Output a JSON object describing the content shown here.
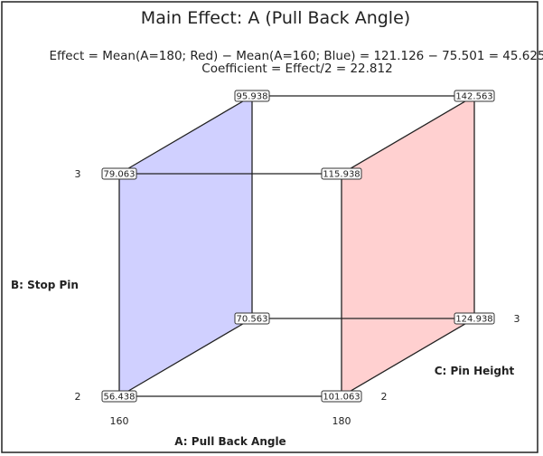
{
  "title": "Main Effect: A (Pull Back Angle)",
  "effect_line": "Effect = Mean(A=180; Red) − Mean(A=160; Blue) = 121.126 − 75.501 = 45.625",
  "coefficient_line": "Coefficient = Effect/2 = 22.812",
  "axes": {
    "a_label": "A: Pull Back Angle",
    "b_label": "B: Stop Pin",
    "c_label": "C: Pin Height",
    "a_low": "160",
    "a_high": "180",
    "b_low": "2",
    "b_high": "3",
    "c_low": "2",
    "c_high": "3"
  },
  "colors": {
    "low_face": "#d0d0ff",
    "high_face": "#ffd0d0"
  },
  "corners": {
    "a160_b2_c2": "56.438",
    "a180_b2_c2": "101.063",
    "a160_b3_c2": "79.063",
    "a180_b3_c2": "115.938",
    "a160_b2_c3": "70.563",
    "a180_b2_c3": "124.938",
    "a160_b3_c3": "95.938",
    "a180_b3_c3": "142.563"
  }
}
